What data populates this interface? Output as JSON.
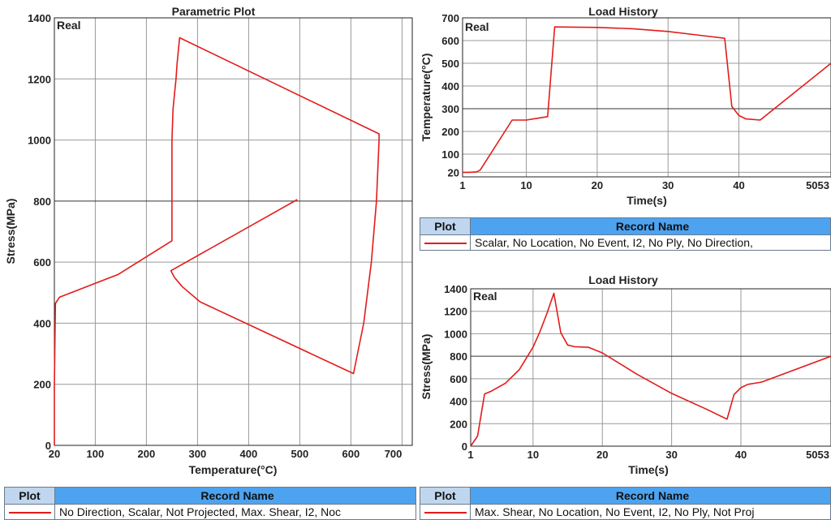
{
  "colors": {
    "series": "#e31b1b",
    "grid": "#999999",
    "header_plot_bg": "#bfd6ee",
    "header_record_bg": "#4da3f0"
  },
  "charts": {
    "param": {
      "title": "Parametric Plot",
      "xlabel": "Temperature(°C)",
      "ylabel": "Stress(MPa)",
      "tag": "Real",
      "xticks": [
        "20",
        "100",
        "200",
        "300",
        "400",
        "500",
        "600",
        "700"
      ],
      "yticks": [
        "0",
        "200",
        "400",
        "600",
        "800",
        "1000",
        "1200",
        "1400"
      ]
    },
    "temp": {
      "title": "Load History",
      "xlabel": "Time(s)",
      "ylabel": "Temperature(°C)",
      "tag": "Real",
      "xticks": [
        "1",
        "10",
        "20",
        "30",
        "40",
        "5053"
      ],
      "yticks": [
        "20",
        "100",
        "200",
        "300",
        "400",
        "500",
        "600",
        "700"
      ]
    },
    "stress": {
      "title": "Load History",
      "xlabel": "Time(s)",
      "ylabel": "Stress(MPa)",
      "tag": "Real",
      "xticks": [
        "1",
        "10",
        "20",
        "30",
        "40",
        "5053"
      ],
      "yticks": [
        "0",
        "200",
        "400",
        "600",
        "800",
        "1000",
        "1200",
        "1400"
      ]
    }
  },
  "legends": {
    "plot_header": "Plot",
    "record_header": "Record Name",
    "temp_record": "Scalar, No Location, No Event, I2, No Ply, No Direction,",
    "param_record": "No Direction, Scalar, Not Projected, Max. Shear, I2, Noc",
    "stress_record": "Max. Shear, No Location, No Event, I2, No Ply, Not Proj"
  },
  "chart_data": [
    {
      "type": "line",
      "title": "Parametric Plot",
      "xlabel": "Temperature(°C)",
      "ylabel": "Stress(MPa)",
      "xlim": [
        20,
        720
      ],
      "ylim": [
        0,
        1400
      ],
      "series": [
        {
          "x": [
            20,
            20,
            22,
            30,
            145,
            250,
            250,
            250,
            252,
            255,
            258,
            260,
            265,
            655,
            655,
            650,
            640,
            625,
            605,
            305,
            270,
            255,
            250,
            248,
            495
          ],
          "y": [
            0,
            200,
            465,
            485,
            560,
            670,
            800,
            1000,
            1100,
            1150,
            1200,
            1250,
            1335,
            1020,
            1000,
            800,
            600,
            400,
            235,
            470,
            520,
            550,
            565,
            572,
            805
          ]
        }
      ]
    },
    {
      "type": "line",
      "title": "Load History",
      "xlabel": "Time(s)",
      "ylabel": "Temperature(°C)",
      "xlim": [
        1,
        53
      ],
      "ylim": [
        0,
        700
      ],
      "series": [
        {
          "x": [
            1,
            2,
            3,
            3.5,
            8,
            10,
            11,
            13,
            14,
            20,
            25,
            30,
            34,
            38,
            39,
            40,
            41,
            43,
            53
          ],
          "y": [
            20,
            20,
            22,
            30,
            250,
            250,
            255,
            265,
            660,
            658,
            652,
            640,
            625,
            610,
            310,
            270,
            255,
            250,
            500
          ]
        }
      ]
    },
    {
      "type": "line",
      "title": "Load History",
      "xlabel": "Time(s)",
      "ylabel": "Stress(MPa)",
      "xlim": [
        1,
        53
      ],
      "ylim": [
        0,
        1400
      ],
      "series": [
        {
          "x": [
            1,
            2,
            3,
            4,
            6,
            8,
            10,
            11,
            12,
            13,
            14,
            15,
            16,
            18,
            20,
            25,
            30,
            35,
            38,
            39,
            40,
            41,
            43,
            53
          ],
          "y": [
            0,
            90,
            465,
            490,
            560,
            680,
            880,
            1020,
            1180,
            1360,
            1010,
            900,
            885,
            880,
            830,
            640,
            470,
            330,
            240,
            460,
            520,
            550,
            570,
            800
          ]
        }
      ]
    }
  ]
}
